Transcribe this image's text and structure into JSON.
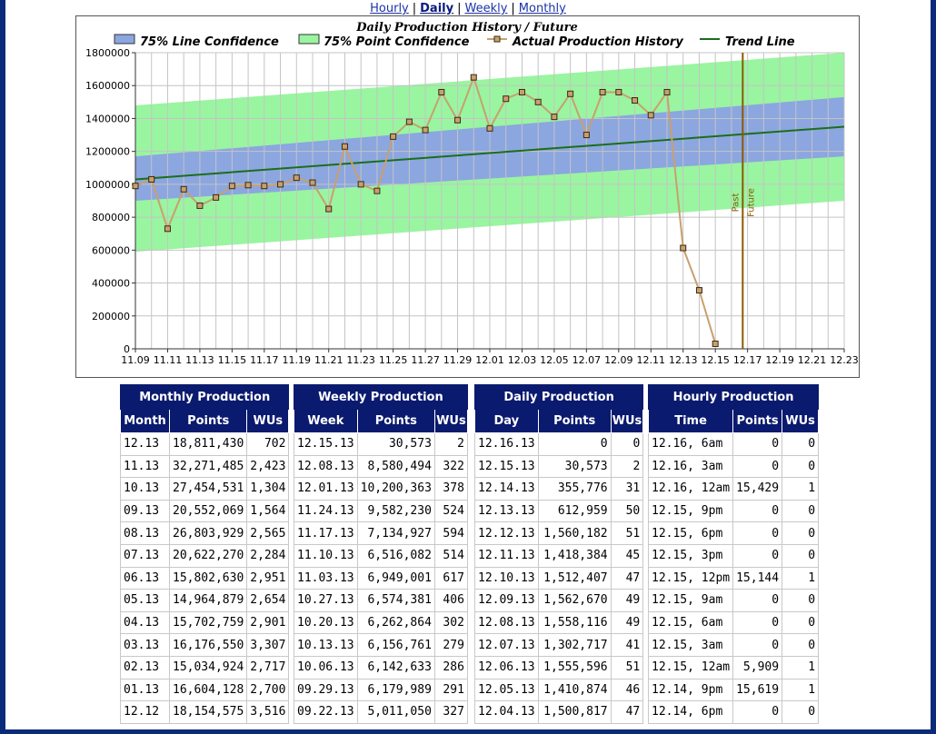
{
  "nav": {
    "links": [
      {
        "label": "Hourly"
      },
      {
        "label": "Daily",
        "active": true
      },
      {
        "label": "Weekly"
      },
      {
        "label": "Monthly"
      }
    ],
    "separator": "|"
  },
  "chart_data": {
    "type": "line",
    "title": "Daily Production History / Future",
    "legend": {
      "placement": "top",
      "entries": [
        "75% Line Confidence",
        "75% Point Confidence",
        "Actual Production History",
        "Trend Line"
      ]
    },
    "x_ticks": [
      "11.09",
      "11.11",
      "11.13",
      "11.15",
      "11.17",
      "11.19",
      "11.21",
      "11.23",
      "11.25",
      "11.27",
      "11.29",
      "12.01",
      "12.03",
      "12.05",
      "12.07",
      "12.09",
      "12.11",
      "12.13",
      "12.15",
      "12.17",
      "12.19",
      "12.21",
      "12.23"
    ],
    "y_ticks": [
      0,
      200000,
      400000,
      600000,
      800000,
      1000000,
      1200000,
      1400000,
      1600000,
      1800000
    ],
    "ylim": [
      0,
      1800000
    ],
    "grid": true,
    "series": [
      {
        "name": "Actual Production History",
        "color": "#c8a070",
        "values": [
          990000,
          1030000,
          730000,
          970000,
          870000,
          920000,
          990000,
          995000,
          990000,
          1000000,
          1040000,
          1010000,
          850000,
          1230000,
          1000000,
          960000,
          1290000,
          1380000,
          1330000,
          1560000,
          1390000,
          1650000,
          1340000,
          1520000,
          1560000,
          1500000,
          1410000,
          1550000,
          1300000,
          1560000,
          1560000,
          1510000,
          1420000,
          1560000,
          612959,
          355776,
          30573
        ]
      },
      {
        "name": "Trend Line",
        "color": "#1a6e1a",
        "start": 1030000,
        "end": 1350000
      },
      {
        "name": "75% Line Confidence",
        "color": "#8ca6e0",
        "upper_start": 1170000,
        "upper_end": 1530000,
        "lower_start": 900000,
        "lower_end": 1170000
      },
      {
        "name": "75% Point Confidence",
        "color": "#99f5a0",
        "upper_start": 1480000,
        "upper_end": 1800000,
        "lower_start": 590000,
        "lower_end": 900000
      }
    ],
    "divider": {
      "past_label": "Past",
      "future_label": "Future",
      "color": "#8a5a00",
      "x_index": 37.7
    }
  },
  "tables": {
    "monthly": {
      "title": "Monthly Production",
      "columns": [
        "Month",
        "Points",
        "WUs"
      ],
      "rows": [
        [
          "12.13",
          "18,811,430",
          "702"
        ],
        [
          "11.13",
          "32,271,485",
          "2,423"
        ],
        [
          "10.13",
          "27,454,531",
          "1,304"
        ],
        [
          "09.13",
          "20,552,069",
          "1,564"
        ],
        [
          "08.13",
          "26,803,929",
          "2,565"
        ],
        [
          "07.13",
          "20,622,270",
          "2,284"
        ],
        [
          "06.13",
          "15,802,630",
          "2,951"
        ],
        [
          "05.13",
          "14,964,879",
          "2,654"
        ],
        [
          "04.13",
          "15,702,759",
          "2,901"
        ],
        [
          "03.13",
          "16,176,550",
          "3,307"
        ],
        [
          "02.13",
          "15,034,924",
          "2,717"
        ],
        [
          "01.13",
          "16,604,128",
          "2,700"
        ],
        [
          "12.12",
          "18,154,575",
          "3,516"
        ]
      ]
    },
    "weekly": {
      "title": "Weekly Production",
      "columns": [
        "Week",
        "Points",
        "WUs"
      ],
      "rows": [
        [
          "12.15.13",
          "30,573",
          "2"
        ],
        [
          "12.08.13",
          "8,580,494",
          "322"
        ],
        [
          "12.01.13",
          "10,200,363",
          "378"
        ],
        [
          "11.24.13",
          "9,582,230",
          "524"
        ],
        [
          "11.17.13",
          "7,134,927",
          "594"
        ],
        [
          "11.10.13",
          "6,516,082",
          "514"
        ],
        [
          "11.03.13",
          "6,949,001",
          "617"
        ],
        [
          "10.27.13",
          "6,574,381",
          "406"
        ],
        [
          "10.20.13",
          "6,262,864",
          "302"
        ],
        [
          "10.13.13",
          "6,156,761",
          "279"
        ],
        [
          "10.06.13",
          "6,142,633",
          "286"
        ],
        [
          "09.29.13",
          "6,179,989",
          "291"
        ],
        [
          "09.22.13",
          "5,011,050",
          "327"
        ]
      ]
    },
    "daily": {
      "title": "Daily Production",
      "columns": [
        "Day",
        "Points",
        "WUs"
      ],
      "rows": [
        [
          "12.16.13",
          "0",
          "0"
        ],
        [
          "12.15.13",
          "30,573",
          "2"
        ],
        [
          "12.14.13",
          "355,776",
          "31"
        ],
        [
          "12.13.13",
          "612,959",
          "50"
        ],
        [
          "12.12.13",
          "1,560,182",
          "51"
        ],
        [
          "12.11.13",
          "1,418,384",
          "45"
        ],
        [
          "12.10.13",
          "1,512,407",
          "47"
        ],
        [
          "12.09.13",
          "1,562,670",
          "49"
        ],
        [
          "12.08.13",
          "1,558,116",
          "49"
        ],
        [
          "12.07.13",
          "1,302,717",
          "41"
        ],
        [
          "12.06.13",
          "1,555,596",
          "51"
        ],
        [
          "12.05.13",
          "1,410,874",
          "46"
        ],
        [
          "12.04.13",
          "1,500,817",
          "47"
        ]
      ]
    },
    "hourly": {
      "title": "Hourly Production",
      "columns": [
        "Time",
        "Points",
        "WUs"
      ],
      "rows": [
        [
          "12.16, 6am",
          "0",
          "0"
        ],
        [
          "12.16, 3am",
          "0",
          "0"
        ],
        [
          "12.16, 12am",
          "15,429",
          "1"
        ],
        [
          "12.15, 9pm",
          "0",
          "0"
        ],
        [
          "12.15, 6pm",
          "0",
          "0"
        ],
        [
          "12.15, 3pm",
          "0",
          "0"
        ],
        [
          "12.15, 12pm",
          "15,144",
          "1"
        ],
        [
          "12.15, 9am",
          "0",
          "0"
        ],
        [
          "12.15, 6am",
          "0",
          "0"
        ],
        [
          "12.15, 3am",
          "0",
          "0"
        ],
        [
          "12.15, 12am",
          "5,909",
          "1"
        ],
        [
          "12.14, 9pm",
          "15,619",
          "1"
        ],
        [
          "12.14, 6pm",
          "0",
          "0"
        ]
      ]
    }
  }
}
